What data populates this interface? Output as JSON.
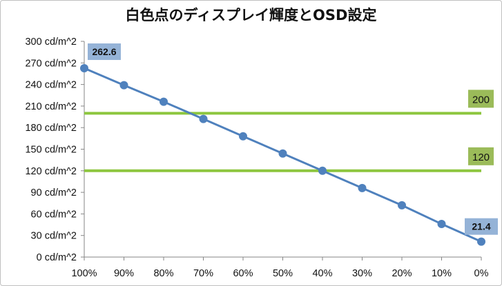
{
  "chart_data": {
    "type": "line",
    "title": "白色点のディスプレイ輝度とOSD設定",
    "xlabel": "",
    "ylabel": "",
    "categories": [
      "100%",
      "90%",
      "80%",
      "70%",
      "60%",
      "50%",
      "40%",
      "30%",
      "20%",
      "10%",
      "0%"
    ],
    "series": [
      {
        "values": [
          262.6,
          239,
          216,
          192,
          168,
          144,
          120,
          96,
          72,
          46,
          21.4
        ],
        "color": "#4f81bd"
      }
    ],
    "ylim": [
      0,
      300
    ],
    "yticks": [
      0,
      30,
      60,
      90,
      120,
      150,
      180,
      210,
      240,
      270,
      300
    ],
    "ytick_labels": [
      "0 cd/m^2",
      "30 cd/m^2",
      "60 cd/m^2",
      "90 cd/m^2",
      "120 cd/m^2",
      "150 cd/m^2",
      "180 cd/m^2",
      "210 cd/m^2",
      "240 cd/m^2",
      "270 cd/m^2",
      "300 cd/m^2"
    ],
    "reference_lines": [
      {
        "value": 200,
        "label": "200",
        "color": "#8dc63f"
      },
      {
        "value": 120,
        "label": "120",
        "color": "#8dc63f"
      }
    ],
    "data_labels": [
      {
        "index": 0,
        "text": "262.6"
      },
      {
        "index": 10,
        "text": "21.4"
      }
    ],
    "grid": false,
    "legend": "none"
  }
}
